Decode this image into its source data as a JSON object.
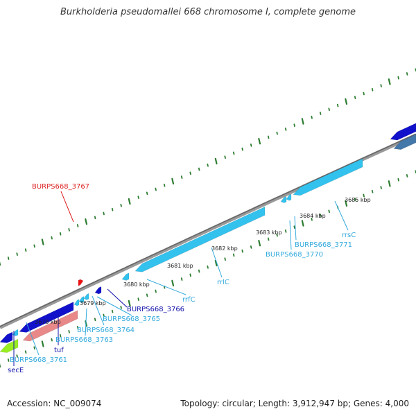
{
  "title": "Burkholderia pseudomallei 668 chromosome I, complete genome",
  "footer": {
    "accession": "Accession: NC_009074",
    "topology": "Topology: circular; Length: 3,912,947 bp; Genes: 4,000"
  },
  "colors": {
    "backbone": "#888888",
    "tick": "#2e7d32",
    "gene_dark_blue": "#1111cc",
    "gene_light_blue": "#33c2ee",
    "gene_red": "#ee1111",
    "gene_pink": "#e88888",
    "gene_lime": "#99ee22",
    "gene_steel": "#4477aa"
  },
  "scale_labels": [
    {
      "text": "3678 kbp"
    },
    {
      "text": "3679 kbp"
    },
    {
      "text": "3680 kbp"
    },
    {
      "text": "3681 kbp"
    },
    {
      "text": "3682 kbp"
    },
    {
      "text": "3683 kbp"
    },
    {
      "text": "3684 kbp"
    },
    {
      "text": "3685 kbp"
    }
  ],
  "gene_labels": [
    {
      "text": "BURPS668_3767",
      "color": "#dd2222"
    },
    {
      "text": "rrfC",
      "color": "#33aadd"
    },
    {
      "text": "BURPS668_3766",
      "color": "#1111aa"
    },
    {
      "text": "BURPS668_3765",
      "color": "#33aadd"
    },
    {
      "text": "BURPS668_3764",
      "color": "#33aadd"
    },
    {
      "text": "BURPS668_3763",
      "color": "#33aadd"
    },
    {
      "text": "tuf",
      "color": "#1111aa"
    },
    {
      "text": "BURPS668_3761",
      "color": "#33aadd"
    },
    {
      "text": "secE",
      "color": "#1111aa"
    },
    {
      "text": "rrlC",
      "color": "#33aadd"
    },
    {
      "text": "BURPS668_3771",
      "color": "#33aadd"
    },
    {
      "text": "BURPS668_3770",
      "color": "#33aadd"
    },
    {
      "text": "rrsC",
      "color": "#33aadd"
    }
  ]
}
